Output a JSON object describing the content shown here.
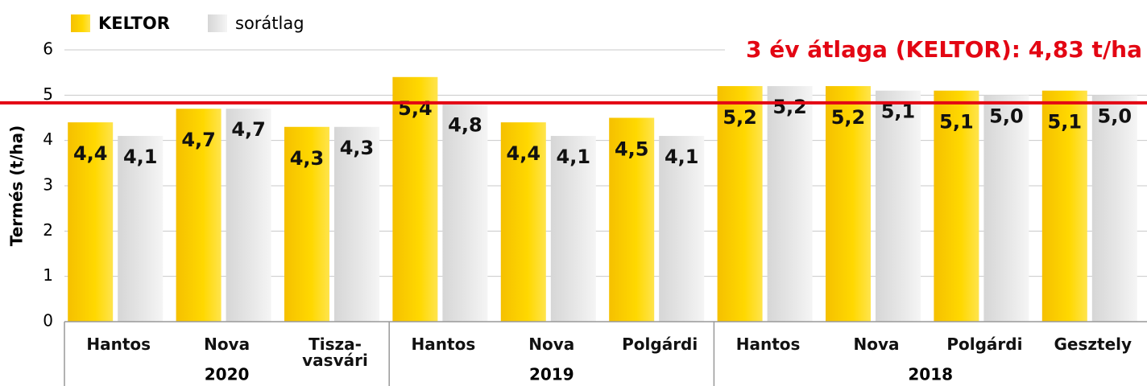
{
  "chart_data": {
    "type": "bar",
    "y_label": "Termés (t/ha)",
    "categories": [
      "Hantos",
      "Nova",
      "Tisza-\nvasvári",
      "Hantos",
      "Nova",
      "Polgárdi",
      "Hantos",
      "Nova",
      "Polgárdi",
      "Gesztely"
    ],
    "category_groups": [
      {
        "label": "2020",
        "count": 3
      },
      {
        "label": "2019",
        "count": 3
      },
      {
        "label": "2018",
        "count": 4
      }
    ],
    "series": [
      {
        "name": "KELTOR",
        "color": "#ffd200",
        "values": [
          4.4,
          4.7,
          4.3,
          5.4,
          4.4,
          4.5,
          5.2,
          5.2,
          5.1,
          5.1
        ],
        "value_labels": [
          "4,4",
          "4,7",
          "4,3",
          "5,4",
          "4,4",
          "4,5",
          "5,2",
          "5,2",
          "5,1",
          "5,1"
        ]
      },
      {
        "name": "sorátlag",
        "color": "#e4e4e4",
        "values": [
          4.1,
          4.7,
          4.3,
          4.8,
          4.1,
          4.1,
          5.2,
          5.1,
          5.0,
          5.0
        ],
        "value_labels": [
          "4,1",
          "4,7",
          "4,3",
          "4,8",
          "4,1",
          "4,1",
          "5,2",
          "5,1",
          "5,0",
          "5,0"
        ]
      }
    ],
    "reference_line": {
      "value": 4.83,
      "color": "#e30613",
      "label": "3 év átlaga (KELTOR): 4,83 t/ha"
    },
    "ylim": [
      0,
      6
    ],
    "yticks": [
      0,
      1,
      2,
      3,
      4,
      5,
      6
    ],
    "grid": true
  }
}
